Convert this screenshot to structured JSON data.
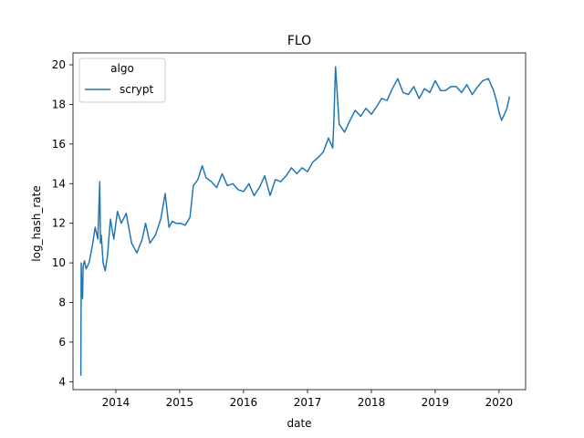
{
  "chart_data": {
    "type": "line",
    "title": "FLO",
    "xlabel": "date",
    "ylabel": "log_hash_rate",
    "xlim": [
      "2013-05-01",
      "2020-06-01"
    ],
    "ylim": [
      3.6,
      20.6
    ],
    "x_ticks": [
      "2014-01-01",
      "2015-01-01",
      "2016-01-01",
      "2017-01-01",
      "2018-01-01",
      "2019-01-01",
      "2020-01-01"
    ],
    "x_tick_labels": [
      "2014",
      "2015",
      "2016",
      "2017",
      "2018",
      "2019",
      "2020"
    ],
    "y_ticks": [
      4,
      6,
      8,
      10,
      12,
      14,
      16,
      18,
      20
    ],
    "y_tick_labels": [
      "4",
      "6",
      "8",
      "10",
      "12",
      "14",
      "16",
      "18",
      "20"
    ],
    "grid": false,
    "legend": {
      "title": "algo",
      "location": "top-left",
      "entries": [
        "scrypt"
      ]
    },
    "series": [
      {
        "name": "scrypt",
        "color": "#1f77b4",
        "x": [
          "2013-06-15",
          "2013-06-17",
          "2013-06-20",
          "2013-06-22",
          "2013-06-25",
          "2013-06-28",
          "2013-07-05",
          "2013-07-15",
          "2013-08-01",
          "2013-08-20",
          "2013-09-05",
          "2013-09-20",
          "2013-10-01",
          "2013-10-05",
          "2013-10-10",
          "2013-10-20",
          "2013-11-01",
          "2013-11-15",
          "2013-12-01",
          "2013-12-20",
          "2014-01-10",
          "2014-02-01",
          "2014-03-01",
          "2014-04-01",
          "2014-05-01",
          "2014-06-01",
          "2014-06-20",
          "2014-07-15",
          "2014-08-15",
          "2014-09-15",
          "2014-10-10",
          "2014-11-01",
          "2014-11-20",
          "2014-12-10",
          "2015-01-05",
          "2015-02-01",
          "2015-03-01",
          "2015-03-20",
          "2015-04-15",
          "2015-05-10",
          "2015-06-01",
          "2015-07-01",
          "2015-08-01",
          "2015-09-01",
          "2015-10-01",
          "2015-11-01",
          "2015-12-01",
          "2016-01-01",
          "2016-02-01",
          "2016-03-01",
          "2016-04-01",
          "2016-05-01",
          "2016-06-01",
          "2016-07-01",
          "2016-08-01",
          "2016-09-01",
          "2016-10-01",
          "2016-11-01",
          "2016-12-01",
          "2017-01-01",
          "2017-02-01",
          "2017-03-01",
          "2017-04-01",
          "2017-05-01",
          "2017-05-25",
          "2017-06-01",
          "2017-06-10",
          "2017-07-01",
          "2017-08-01",
          "2017-09-01",
          "2017-10-01",
          "2017-11-01",
          "2017-12-01",
          "2018-01-01",
          "2018-02-01",
          "2018-03-01",
          "2018-04-01",
          "2018-05-01",
          "2018-06-01",
          "2018-07-01",
          "2018-08-01",
          "2018-09-01",
          "2018-10-01",
          "2018-11-01",
          "2018-12-01",
          "2019-01-01",
          "2019-02-01",
          "2019-03-01",
          "2019-04-01",
          "2019-05-01",
          "2019-06-01",
          "2019-07-01",
          "2019-08-01",
          "2019-09-01",
          "2019-10-01",
          "2019-11-01",
          "2019-12-01",
          "2019-12-20",
          "2020-01-01",
          "2020-01-15",
          "2020-02-01",
          "2020-02-15",
          "2020-03-01"
        ],
        "y": [
          4.3,
          10.0,
          8.6,
          9.2,
          8.2,
          9.8,
          10.1,
          9.7,
          10.0,
          10.9,
          11.8,
          11.2,
          14.1,
          11.0,
          11.4,
          10.0,
          9.6,
          10.4,
          12.2,
          11.2,
          12.6,
          12.0,
          12.5,
          11.0,
          10.5,
          11.2,
          12.0,
          11.0,
          11.4,
          12.2,
          13.5,
          11.8,
          12.1,
          12.0,
          12.0,
          11.9,
          12.3,
          13.9,
          14.2,
          14.9,
          14.3,
          14.1,
          13.8,
          14.5,
          13.9,
          14.0,
          13.7,
          13.6,
          14.0,
          13.4,
          13.8,
          14.4,
          13.4,
          14.2,
          14.1,
          14.4,
          14.8,
          14.5,
          14.8,
          14.6,
          15.1,
          15.3,
          15.6,
          16.3,
          15.8,
          17.2,
          19.9,
          17.0,
          16.6,
          17.2,
          17.7,
          17.4,
          17.8,
          17.5,
          17.9,
          18.3,
          18.2,
          18.8,
          19.3,
          18.6,
          18.5,
          18.9,
          18.3,
          18.8,
          18.6,
          19.2,
          18.7,
          18.7,
          18.9,
          18.9,
          18.6,
          19.0,
          18.5,
          18.9,
          19.2,
          19.3,
          18.7,
          18.1,
          17.6,
          17.2,
          17.5,
          17.8,
          18.4
        ]
      }
    ]
  }
}
